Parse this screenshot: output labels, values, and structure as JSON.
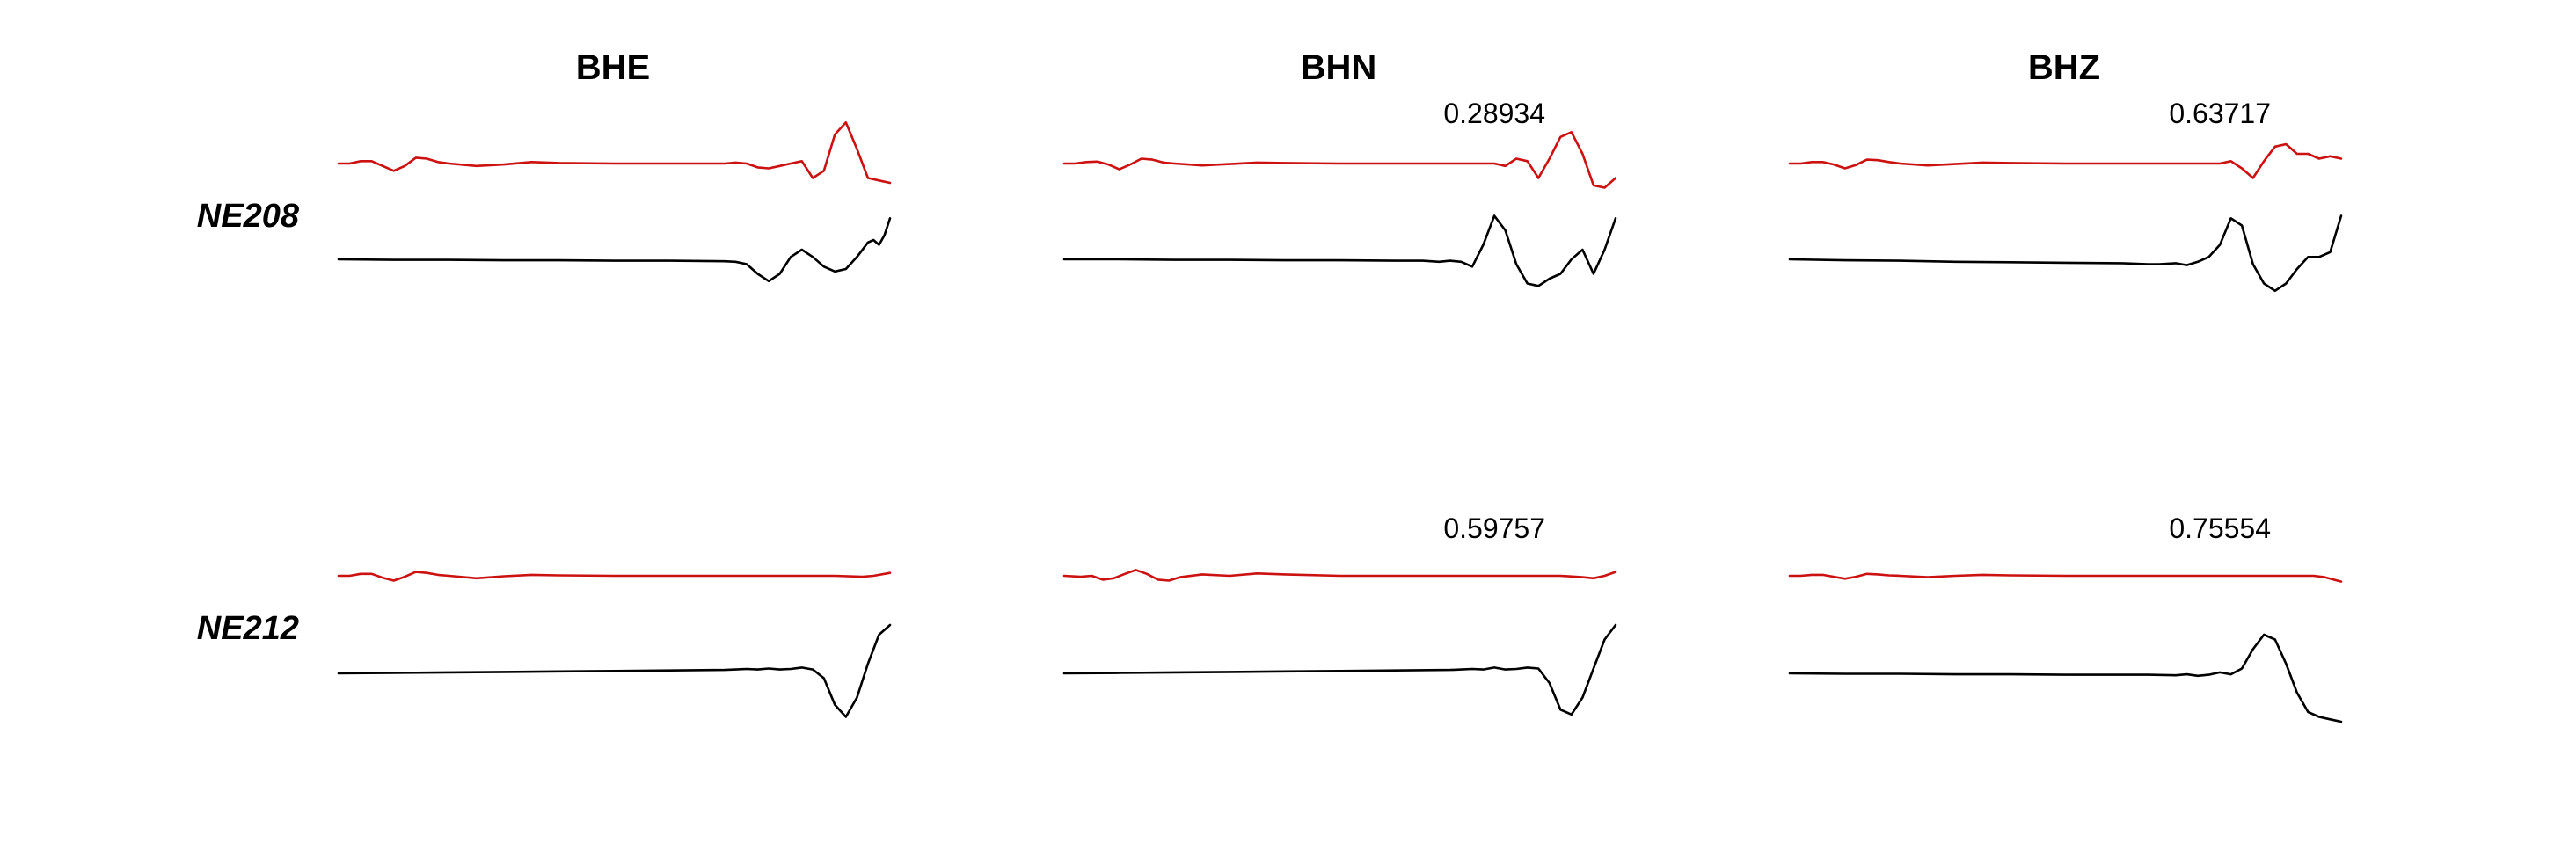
{
  "chart_data": {
    "type": "line",
    "columns": [
      "BHE",
      "BHN",
      "BHZ"
    ],
    "rows": [
      "NE208",
      "NE212"
    ],
    "colors": {
      "synthetic": "#cc1111",
      "observed": "#000000"
    },
    "x_range": [
      0,
      100
    ],
    "y_range": [
      -1,
      1
    ],
    "panels": [
      {
        "row": "NE208",
        "column": "BHE",
        "cc": "",
        "synthetic": {
          "x": [
            0,
            2,
            4,
            6,
            8,
            10,
            12,
            14,
            16,
            18,
            20,
            25,
            30,
            35,
            40,
            50,
            60,
            65,
            70,
            72,
            74,
            76,
            78,
            80,
            82,
            84,
            86,
            88,
            90,
            92,
            94,
            96,
            98,
            100
          ],
          "y": [
            0,
            0,
            0.05,
            0.05,
            -0.05,
            -0.15,
            -0.05,
            0.12,
            0.1,
            0.03,
            0,
            -0.05,
            -0.02,
            0.03,
            0.01,
            0,
            0,
            0,
            0,
            0.02,
            0,
            -0.08,
            -0.1,
            -0.05,
            0,
            0.05,
            -0.3,
            -0.15,
            0.6,
            0.85,
            0.3,
            -0.3,
            -0.35,
            -0.4
          ]
        },
        "observed": {
          "x": [
            0,
            10,
            20,
            30,
            40,
            50,
            60,
            70,
            72,
            74,
            76,
            78,
            80,
            82,
            84,
            86,
            88,
            90,
            92,
            94,
            96,
            97,
            98,
            99,
            100
          ],
          "y": [
            0,
            -0.01,
            -0.01,
            -0.02,
            -0.02,
            -0.03,
            -0.03,
            -0.04,
            -0.05,
            -0.1,
            -0.3,
            -0.45,
            -0.3,
            0.05,
            0.2,
            0.05,
            -0.15,
            -0.25,
            -0.2,
            0.05,
            0.35,
            0.4,
            0.3,
            0.5,
            0.85
          ]
        }
      },
      {
        "row": "NE208",
        "column": "BHN",
        "cc": "0.28934",
        "synthetic": {
          "x": [
            0,
            2,
            4,
            6,
            8,
            10,
            12,
            14,
            16,
            18,
            20,
            25,
            30,
            35,
            40,
            50,
            60,
            70,
            75,
            78,
            80,
            82,
            84,
            86,
            88,
            90,
            92,
            94,
            96,
            98,
            100
          ],
          "y": [
            0,
            0,
            0.03,
            0.04,
            -0.02,
            -0.12,
            -0.02,
            0.1,
            0.08,
            0.02,
            0,
            -0.04,
            -0.01,
            0.02,
            0.01,
            0,
            0,
            0,
            0,
            0,
            -0.05,
            0.1,
            0.05,
            -0.3,
            0.1,
            0.55,
            0.65,
            0.2,
            -0.45,
            -0.5,
            -0.3
          ]
        },
        "observed": {
          "x": [
            0,
            10,
            20,
            30,
            40,
            50,
            60,
            65,
            68,
            70,
            72,
            74,
            76,
            78,
            80,
            82,
            84,
            86,
            88,
            90,
            92,
            94,
            96,
            98,
            100
          ],
          "y": [
            0,
            0,
            -0.01,
            -0.01,
            -0.02,
            -0.02,
            -0.03,
            -0.03,
            -0.05,
            -0.03,
            -0.05,
            -0.15,
            0.3,
            0.9,
            0.6,
            -0.1,
            -0.5,
            -0.55,
            -0.4,
            -0.3,
            0,
            0.2,
            -0.3,
            0.2,
            0.85
          ]
        }
      },
      {
        "row": "NE208",
        "column": "BHZ",
        "cc": "0.63717",
        "synthetic": {
          "x": [
            0,
            2,
            4,
            6,
            8,
            10,
            12,
            14,
            16,
            18,
            20,
            25,
            30,
            35,
            40,
            50,
            60,
            70,
            76,
            78,
            80,
            82,
            84,
            86,
            88,
            90,
            92,
            94,
            96,
            98,
            100
          ],
          "y": [
            0,
            0,
            0.03,
            0.03,
            -0.02,
            -0.1,
            -0.03,
            0.08,
            0.07,
            0.03,
            0,
            -0.04,
            -0.01,
            0.02,
            0.01,
            0,
            0,
            0,
            0,
            0,
            0.05,
            -0.1,
            -0.3,
            0.05,
            0.35,
            0.4,
            0.2,
            0.2,
            0.1,
            0.15,
            0.1
          ]
        },
        "observed": {
          "x": [
            0,
            10,
            20,
            30,
            40,
            50,
            60,
            65,
            67,
            70,
            72,
            74,
            76,
            78,
            80,
            82,
            84,
            86,
            88,
            90,
            92,
            94,
            96,
            98,
            100
          ],
          "y": [
            0,
            -0.02,
            -0.03,
            -0.05,
            -0.06,
            -0.07,
            -0.08,
            -0.1,
            -0.1,
            -0.08,
            -0.12,
            -0.05,
            0.05,
            0.3,
            0.85,
            0.7,
            -0.1,
            -0.5,
            -0.65,
            -0.5,
            -0.2,
            0.05,
            0.05,
            0.15,
            0.9
          ]
        }
      },
      {
        "row": "NE212",
        "column": "BHE",
        "cc": "",
        "synthetic": {
          "x": [
            0,
            2,
            4,
            6,
            8,
            10,
            12,
            14,
            16,
            18,
            20,
            25,
            30,
            35,
            40,
            50,
            60,
            70,
            80,
            90,
            95,
            97,
            100
          ],
          "y": [
            0,
            0,
            0.04,
            0.04,
            -0.04,
            -0.1,
            -0.02,
            0.08,
            0.06,
            0.02,
            0,
            -0.05,
            -0.01,
            0.02,
            0.01,
            0,
            0,
            0,
            0,
            0,
            -0.02,
            0,
            0.06
          ]
        },
        "observed": {
          "x": [
            0,
            10,
            20,
            30,
            40,
            50,
            60,
            70,
            72,
            74,
            76,
            78,
            80,
            82,
            84,
            86,
            88,
            90,
            92,
            94,
            96,
            98,
            100
          ],
          "y": [
            0,
            0.01,
            0.02,
            0.03,
            0.04,
            0.05,
            0.06,
            0.07,
            0.08,
            0.09,
            0.08,
            0.1,
            0.08,
            0.09,
            0.12,
            0.08,
            -0.1,
            -0.65,
            -0.9,
            -0.5,
            0.2,
            0.8,
            1.0
          ]
        }
      },
      {
        "row": "NE212",
        "column": "BHN",
        "cc": "0.59757",
        "synthetic": {
          "x": [
            0,
            3,
            5,
            7,
            9,
            11,
            13,
            15,
            17,
            19,
            21,
            25,
            30,
            35,
            40,
            50,
            60,
            70,
            80,
            90,
            94,
            96,
            98,
            100
          ],
          "y": [
            0,
            -0.02,
            0,
            -0.08,
            -0.05,
            0.04,
            0.12,
            0.04,
            -0.08,
            -0.1,
            -0.03,
            0.03,
            0,
            0.05,
            0.03,
            0,
            0,
            0,
            0,
            0,
            -0.03,
            -0.05,
            0,
            0.08
          ]
        },
        "observed": {
          "x": [
            0,
            10,
            20,
            30,
            40,
            50,
            60,
            70,
            72,
            74,
            76,
            78,
            80,
            82,
            84,
            86,
            88,
            90,
            92,
            94,
            96,
            98,
            100
          ],
          "y": [
            0,
            0.01,
            0.02,
            0.03,
            0.04,
            0.05,
            0.06,
            0.07,
            0.08,
            0.09,
            0.08,
            0.12,
            0.08,
            0.09,
            0.12,
            0.1,
            -0.2,
            -0.75,
            -0.85,
            -0.5,
            0.1,
            0.7,
            1.0
          ]
        }
      },
      {
        "row": "NE212",
        "column": "BHZ",
        "cc": "0.75554",
        "synthetic": {
          "x": [
            0,
            2,
            4,
            6,
            8,
            10,
            12,
            14,
            16,
            18,
            20,
            25,
            30,
            35,
            40,
            50,
            60,
            70,
            80,
            90,
            95,
            97,
            100
          ],
          "y": [
            0,
            0,
            0.02,
            0.02,
            -0.02,
            -0.06,
            -0.02,
            0.04,
            0.03,
            0.01,
            0,
            -0.03,
            0,
            0.02,
            0.01,
            0,
            0,
            0,
            0,
            0,
            0,
            -0.03,
            -0.12
          ]
        },
        "observed": {
          "x": [
            0,
            10,
            20,
            30,
            40,
            50,
            60,
            65,
            70,
            72,
            74,
            76,
            78,
            80,
            82,
            84,
            86,
            88,
            90,
            92,
            94,
            96,
            98,
            100
          ],
          "y": [
            0,
            -0.01,
            -0.01,
            -0.02,
            -0.02,
            -0.03,
            -0.03,
            -0.03,
            -0.04,
            -0.02,
            -0.05,
            -0.03,
            0.02,
            -0.02,
            0.1,
            0.5,
            0.8,
            0.7,
            0.2,
            -0.4,
            -0.8,
            -0.9,
            -0.95,
            -1.0
          ]
        }
      }
    ]
  }
}
